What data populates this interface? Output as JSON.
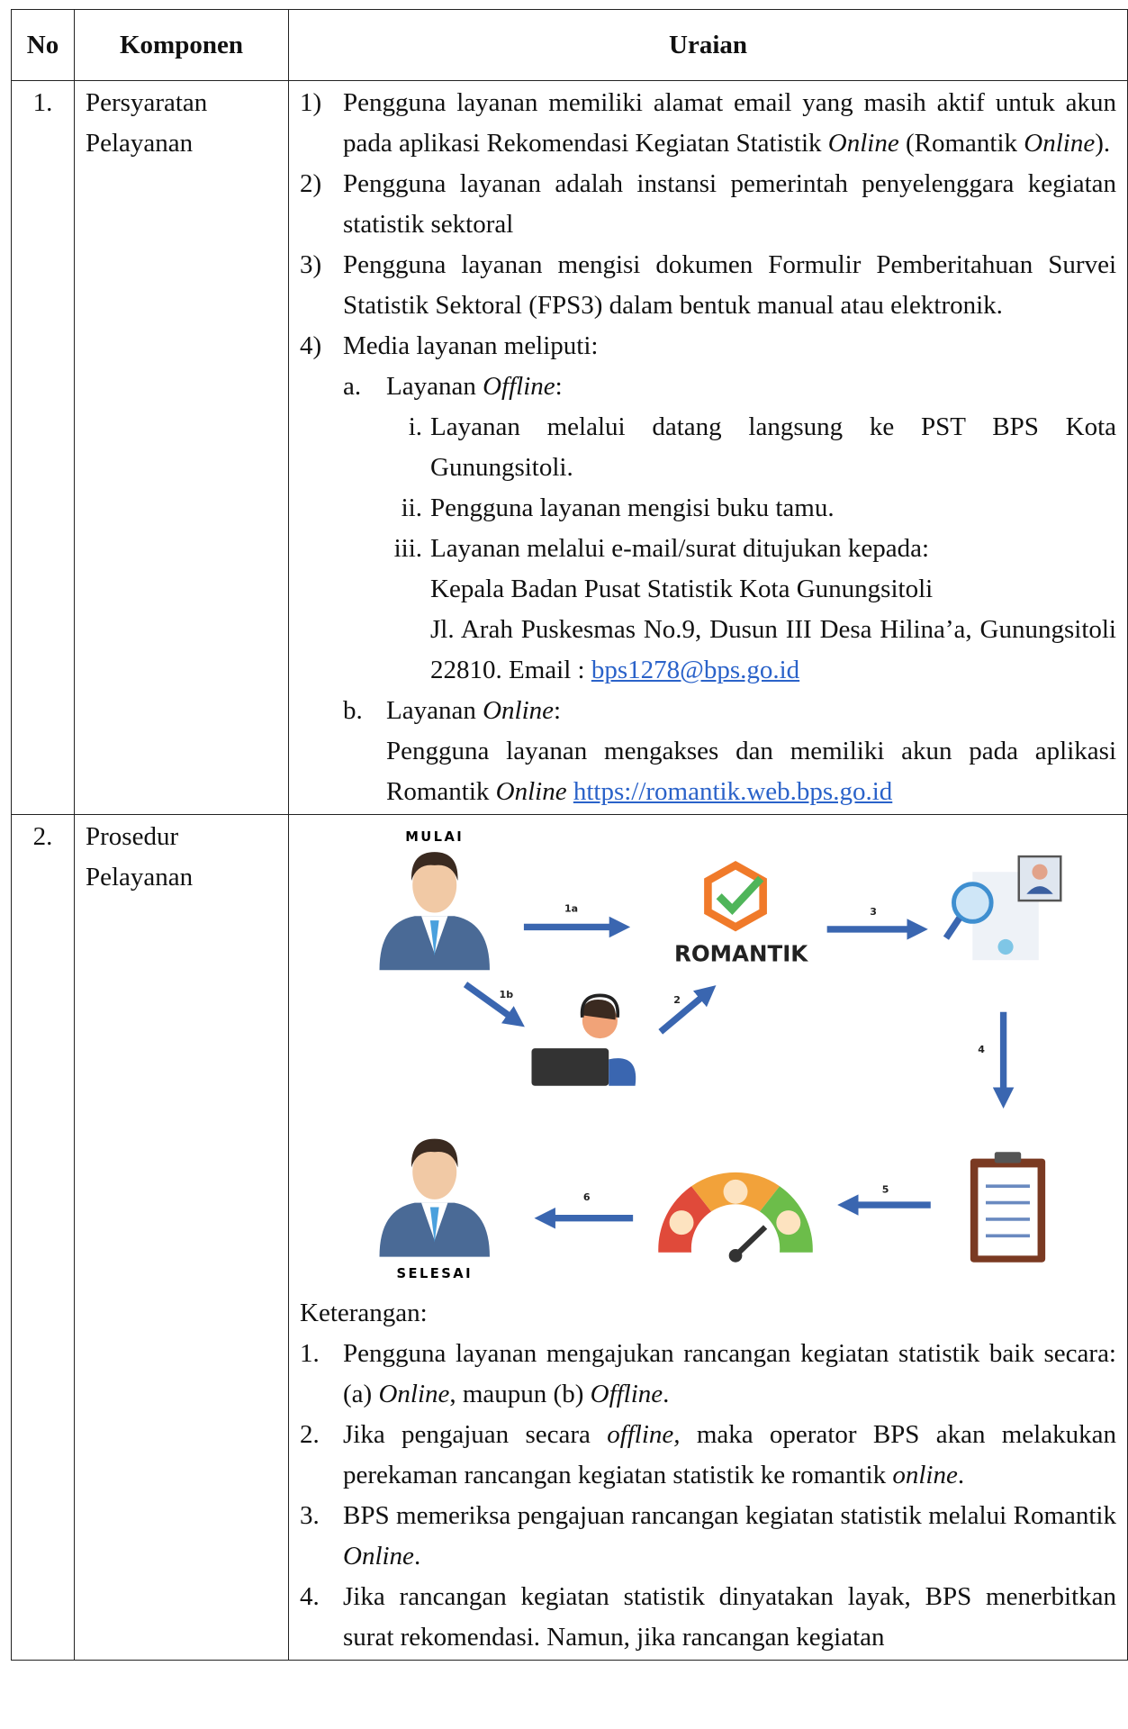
{
  "table": {
    "headers": [
      "No",
      "Komponen",
      "Uraian"
    ],
    "rows": [
      {
        "no": "1.",
        "komponen": "Persyaratan Pelayanan",
        "items": [
          {
            "num": "1)",
            "parts": [
              "Pengguna layanan memiliki alamat email yang masih aktif untuk akun pada aplikasi Rekomendasi Kegiatan Statistik ",
              "Online",
              " (Romantik ",
              "Online",
              ")."
            ]
          },
          {
            "num": "2)",
            "parts": [
              "Pengguna layanan adalah instansi pemerintah penyelenggara kegiatan statistik sektoral"
            ]
          },
          {
            "num": "3)",
            "parts": [
              "Pengguna layanan mengisi dokumen Formulir Pemberitahuan Survei Statistik Sektoral (FPS3) dalam bentuk manual atau elektronik."
            ]
          },
          {
            "num": "4)",
            "parts": [
              "Media layanan meliputi:"
            ],
            "sub": [
              {
                "num": "a.",
                "parts": [
                  "Layanan ",
                  "Offline",
                  ":"
                ],
                "sub": [
                  {
                    "num": "i.",
                    "text": "Layanan melalui datang langsung ke PST BPS Kota Gunungsitoli."
                  },
                  {
                    "num": "ii.",
                    "text": "Pengguna layanan mengisi buku tamu."
                  },
                  {
                    "num": "iii.",
                    "text": "Layanan melalui e-mail/surat ditujukan kepada:",
                    "recipient": "Kepala Badan Pusat Statistik Kota Gunungsitoli",
                    "address": "Jl. Arah Puskesmas No.9, Dusun III Desa Hilina’a, Gunungsitoli 22810. Email : ",
                    "email": "bps1278@bps.go.id"
                  }
                ]
              },
              {
                "num": "b.",
                "parts": [
                  "Layanan ",
                  "Online",
                  ":"
                ],
                "desc": [
                  "Pengguna layanan mengakses dan memiliki akun pada aplikasi Romantik ",
                  "Online"
                ],
                "link": "https://romantik.web.bps.go.id"
              }
            ]
          }
        ]
      },
      {
        "no": "2.",
        "komponen": "Prosedur Pelayanan",
        "diagram": {
          "start": "MULAI",
          "end": "SELESAI",
          "system": "ROMANTIK",
          "steps": [
            "1a",
            "1b",
            "2",
            "3",
            "4",
            "5",
            "6"
          ]
        },
        "notes_title": "Keterangan:",
        "notes": [
          {
            "num": "1.",
            "parts": [
              "Pengguna layanan mengajukan rancangan kegiatan statistik baik secara: (a) ",
              "Online",
              ", maupun (b) ",
              "Offline",
              "."
            ]
          },
          {
            "num": "2.",
            "parts": [
              "Jika pengajuan secara ",
              "offline,",
              " maka operator BPS akan melakukan perekaman rancangan kegiatan statistik ke romantik ",
              "online",
              "."
            ]
          },
          {
            "num": "3.",
            "parts": [
              "BPS memeriksa pengajuan rancangan kegiatan statistik melalui Romantik ",
              "Online",
              "."
            ]
          },
          {
            "num": "4.",
            "parts": [
              "Jika rancangan kegiatan statistik dinyatakan layak, BPS menerbitkan surat rekomendasi. Namun, jika rancangan kegiatan"
            ]
          }
        ]
      }
    ]
  }
}
